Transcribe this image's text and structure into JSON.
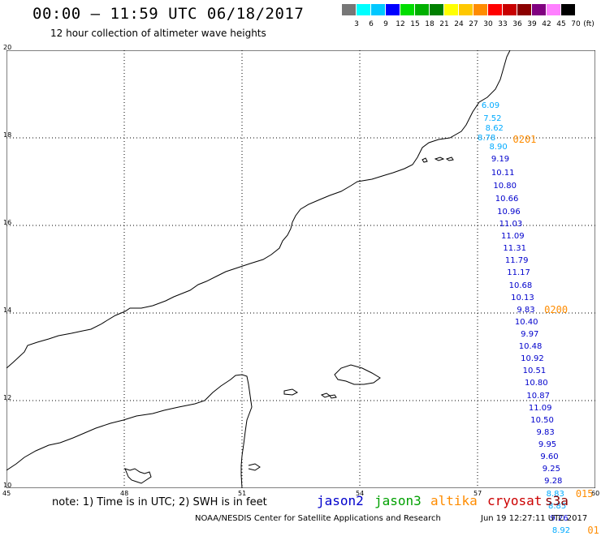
{
  "header": {
    "title": "00:00 – 11:59 UTC 06/18/2017",
    "subtitle": "12 hour collection of altimeter wave heights"
  },
  "color_scale": {
    "unit": "(ft)",
    "levels": [
      "3",
      "6",
      "9",
      "12",
      "15",
      "18",
      "21",
      "24",
      "27",
      "30",
      "33",
      "36",
      "39",
      "42",
      "45",
      "70"
    ],
    "colors": [
      "#777777",
      "#00ffff",
      "#00c8ff",
      "#0000ff",
      "#00dd00",
      "#00b000",
      "#008000",
      "#ffff00",
      "#ffc800",
      "#ff8c00",
      "#ff0000",
      "#c80000",
      "#8b0000",
      "#800080",
      "#ff80ff",
      "#000000"
    ]
  },
  "axes": {
    "lon_labels": [
      "45",
      "48",
      "51",
      "54",
      "57",
      "60"
    ],
    "lat_labels": [
      "20",
      "18",
      "16",
      "14",
      "12",
      "10"
    ]
  },
  "observations": [
    {
      "value": "6.09",
      "lon": 57.1,
      "lat": 18.72,
      "color": "#00aaff"
    },
    {
      "value": "7.52",
      "lon": 57.15,
      "lat": 18.42,
      "color": "#00aaff"
    },
    {
      "value": "8.62",
      "lon": 57.2,
      "lat": 18.2,
      "color": "#00aaff"
    },
    {
      "value": "8.78",
      "lon": 57.0,
      "lat": 17.98,
      "color": "#00aaff"
    },
    {
      "value": "8.90",
      "lon": 57.3,
      "lat": 17.78,
      "color": "#00aaff"
    },
    {
      "value": "9.19",
      "lon": 57.35,
      "lat": 17.5,
      "color": "#0000cc"
    },
    {
      "value": "10.11",
      "lon": 57.35,
      "lat": 17.18,
      "color": "#0000cc"
    },
    {
      "value": "10.80",
      "lon": 57.4,
      "lat": 16.88,
      "color": "#0000cc"
    },
    {
      "value": "10.66",
      "lon": 57.45,
      "lat": 16.6,
      "color": "#0000cc"
    },
    {
      "value": "10.96",
      "lon": 57.5,
      "lat": 16.3,
      "color": "#0000cc"
    },
    {
      "value": "11.03",
      "lon": 57.55,
      "lat": 16.02,
      "color": "#0000cc"
    },
    {
      "value": "11.09",
      "lon": 57.6,
      "lat": 15.74,
      "color": "#0000cc"
    },
    {
      "value": "11.31",
      "lon": 57.65,
      "lat": 15.46,
      "color": "#0000cc"
    },
    {
      "value": "11.79",
      "lon": 57.7,
      "lat": 15.18,
      "color": "#0000cc"
    },
    {
      "value": "11.17",
      "lon": 57.75,
      "lat": 14.9,
      "color": "#0000cc"
    },
    {
      "value": "10.68",
      "lon": 57.8,
      "lat": 14.62,
      "color": "#0000cc"
    },
    {
      "value": "10.13",
      "lon": 57.85,
      "lat": 14.34,
      "color": "#0000cc"
    },
    {
      "value": "9.83",
      "lon": 58.0,
      "lat": 14.06,
      "color": "#0000cc"
    },
    {
      "value": "10.40",
      "lon": 57.95,
      "lat": 13.78,
      "color": "#0000cc"
    },
    {
      "value": "9.97",
      "lon": 58.1,
      "lat": 13.5,
      "color": "#0000cc"
    },
    {
      "value": "10.48",
      "lon": 58.05,
      "lat": 13.22,
      "color": "#0000cc"
    },
    {
      "value": "10.92",
      "lon": 58.1,
      "lat": 12.94,
      "color": "#0000cc"
    },
    {
      "value": "10.51",
      "lon": 58.15,
      "lat": 12.66,
      "color": "#0000cc"
    },
    {
      "value": "10.80",
      "lon": 58.2,
      "lat": 12.38,
      "color": "#0000cc"
    },
    {
      "value": "10.87",
      "lon": 58.25,
      "lat": 12.1,
      "color": "#0000cc"
    },
    {
      "value": "11.09",
      "lon": 58.3,
      "lat": 11.82,
      "color": "#0000cc"
    },
    {
      "value": "10.50",
      "lon": 58.35,
      "lat": 11.54,
      "color": "#0000cc"
    },
    {
      "value": "9.83",
      "lon": 58.5,
      "lat": 11.26,
      "color": "#0000cc"
    },
    {
      "value": "9.95",
      "lon": 58.55,
      "lat": 10.98,
      "color": "#0000cc"
    },
    {
      "value": "9.60",
      "lon": 58.6,
      "lat": 10.7,
      "color": "#0000cc"
    },
    {
      "value": "9.25",
      "lon": 58.65,
      "lat": 10.42,
      "color": "#0000cc"
    },
    {
      "value": "9.28",
      "lon": 58.7,
      "lat": 10.14,
      "color": "#0000cc"
    },
    {
      "value": "8.83",
      "lon": 58.75,
      "lat": 9.86,
      "color": "#00aaff"
    },
    {
      "value": "8.85",
      "lon": 58.8,
      "lat": 9.58,
      "color": "#00aaff"
    },
    {
      "value": "9.26",
      "lon": 58.85,
      "lat": 9.3,
      "color": "#0000cc"
    },
    {
      "value": "8.92",
      "lon": 58.9,
      "lat": 9.02,
      "color": "#00aaff"
    }
  ],
  "pass_times": [
    {
      "label": "0201",
      "lon": 57.9,
      "lat": 17.95
    },
    {
      "label": "0200",
      "lon": 58.7,
      "lat": 14.06
    },
    {
      "label": "015",
      "lon": 59.5,
      "lat": 9.86
    },
    {
      "label": "01",
      "lon": 59.8,
      "lat": 9.02
    }
  ],
  "note": "note: 1) Time is in UTC; 2) SWH is in feet",
  "satellites": [
    {
      "name": "jason2",
      "color": "#0000cc"
    },
    {
      "name": "jason3",
      "color": "#00a000"
    },
    {
      "name": "altika",
      "color": "#ff8c00"
    },
    {
      "name": "cryosat",
      "color": "#cc0000"
    },
    {
      "name": "s3a",
      "color": "#8b0000"
    }
  ],
  "footer": {
    "credit": "NOAA/NESDIS Center for Satellite Applications and Research",
    "timestamp": "Jun 19 12:27:11 UTC 2017"
  }
}
